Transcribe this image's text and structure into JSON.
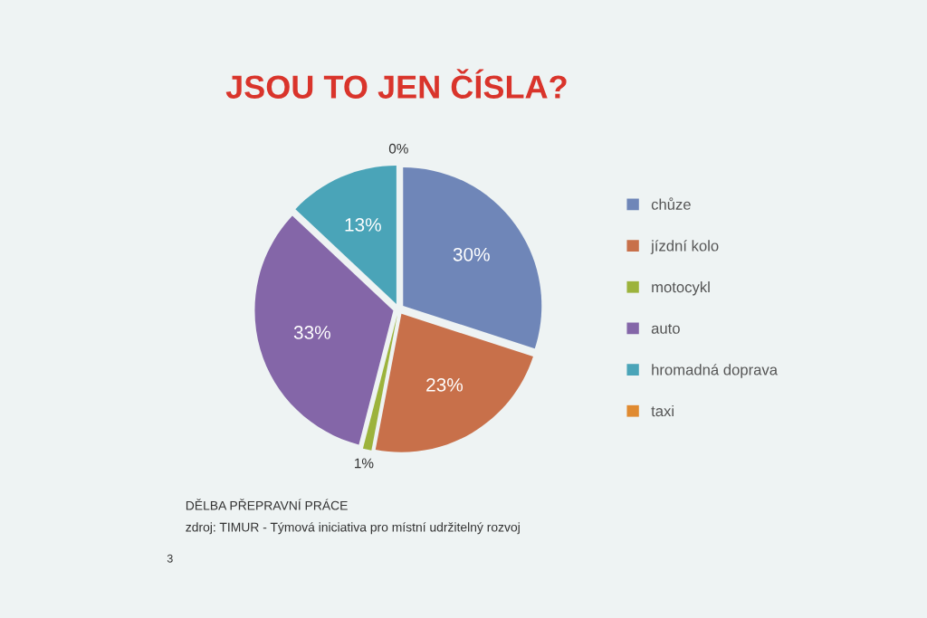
{
  "chart_data": {
    "type": "pie",
    "title": "JSOU TO JEN ČÍSLA?",
    "categories": [
      "chůze",
      "jízdní kolo",
      "motocykl",
      "auto",
      "hromadná doprava",
      "taxi"
    ],
    "values": [
      30,
      23,
      1,
      33,
      13,
      0
    ],
    "value_labels": [
      "30%",
      "23%",
      "1%",
      "33%",
      "13%",
      "0%"
    ],
    "colors": [
      "#6f86b8",
      "#c8704a",
      "#9cb33c",
      "#8466a8",
      "#4aa4b8",
      "#e08a30"
    ],
    "legend": "right",
    "annotations": [
      "DĚLBA PŘEPRAVNÍ PRÁCE",
      "zdroj: TIMUR - Týmová iniciativa pro místní udržitelný rozvoj",
      "3"
    ]
  }
}
